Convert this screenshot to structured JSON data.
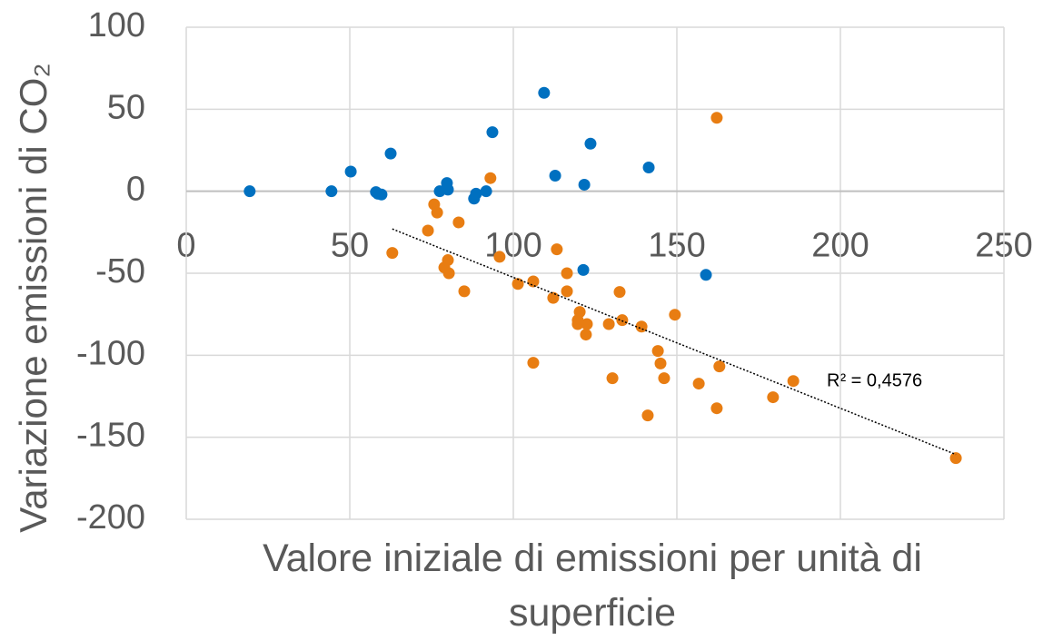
{
  "chart_data": {
    "type": "scatter",
    "y_axis_label": "Variazione emissioni di CO₂",
    "x_axis_label": "Valore iniziale di emissioni per unità di superficie",
    "annotation": "R² = 0,4576",
    "xlim": [
      0,
      250
    ],
    "xticks": [
      0,
      50,
      100,
      150,
      200,
      250
    ],
    "ylim": [
      -200,
      100
    ],
    "yticks": [
      -200,
      -150,
      -100,
      -50,
      0,
      50,
      100
    ],
    "grid": true,
    "series": [
      {
        "color": "#0070c0",
        "x": [
          19.4,
          44.4,
          50.3,
          58,
          58.6,
          59.7,
          62.5,
          77.5,
          79.7,
          80,
          88,
          88.6,
          91.7,
          93.6,
          109.4,
          112.8,
          121.7,
          121.4,
          123.6,
          141.4,
          158.9
        ],
        "values": [
          0,
          0,
          12,
          -0.5,
          -1.5,
          -2,
          23,
          0,
          5,
          1,
          -4.5,
          -1.5,
          0,
          36,
          60,
          9.5,
          4,
          -48,
          29,
          14.5,
          -51
        ]
      },
      {
        "color": "#e87d12",
        "x": [
          63,
          73.9,
          75.8,
          76.7,
          78.9,
          80,
          80.3,
          83.3,
          85,
          93,
          95.8,
          101.4,
          106.1,
          106.1,
          113.3,
          112.2,
          116.4,
          116.4,
          120.3,
          119.7,
          119.7,
          122.5,
          122.2,
          129.2,
          130.3,
          132.5,
          133.3,
          139.2,
          141.1,
          144.2,
          145,
          146.1,
          149.4,
          156.7,
          162.2,
          162.2,
          163,
          179.4,
          185.6,
          235.3
        ],
        "values": [
          -37.6,
          -24,
          -8,
          -13,
          -46.5,
          -42,
          -50,
          -19,
          -61,
          8,
          -40,
          -56.5,
          -55,
          -104.6,
          -35.4,
          -65,
          -50,
          -61,
          -73.6,
          -78.6,
          -81,
          -81,
          -87.4,
          -81,
          -114,
          -61.4,
          -78.6,
          -82.5,
          -136.7,
          -97.4,
          -105,
          -114,
          -75.3,
          -117.3,
          -132.3,
          44.8,
          -106.8,
          -125.6,
          -115.7,
          -162.7
        ]
      }
    ],
    "trendline": {
      "x": [
        63,
        235.3
      ],
      "values": [
        -23,
        -160.5
      ]
    }
  }
}
